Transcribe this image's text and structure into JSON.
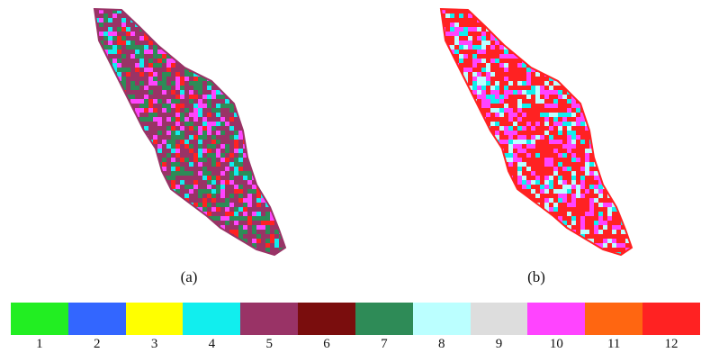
{
  "panels": [
    {
      "label": "(a)",
      "dominant_classes": [
        "5",
        "7",
        "10",
        "12",
        "4"
      ]
    },
    {
      "label": "(b)",
      "dominant_classes": [
        "12",
        "10",
        "8",
        "4"
      ]
    }
  ],
  "legend": {
    "items": [
      {
        "label": "1",
        "color": "#22ee22"
      },
      {
        "label": "2",
        "color": "#3366ff"
      },
      {
        "label": "3",
        "color": "#ffff00"
      },
      {
        "label": "4",
        "color": "#11eeee"
      },
      {
        "label": "5",
        "color": "#993366"
      },
      {
        "label": "6",
        "color": "#7a0d0d"
      },
      {
        "label": "7",
        "color": "#2e8b57"
      },
      {
        "label": "8",
        "color": "#bbffff"
      },
      {
        "label": "9",
        "color": "#dddddd"
      },
      {
        "label": "10",
        "color": "#ff44ff"
      },
      {
        "label": "11",
        "color": "#ff6611"
      },
      {
        "label": "12",
        "color": "#ff2222"
      }
    ]
  }
}
